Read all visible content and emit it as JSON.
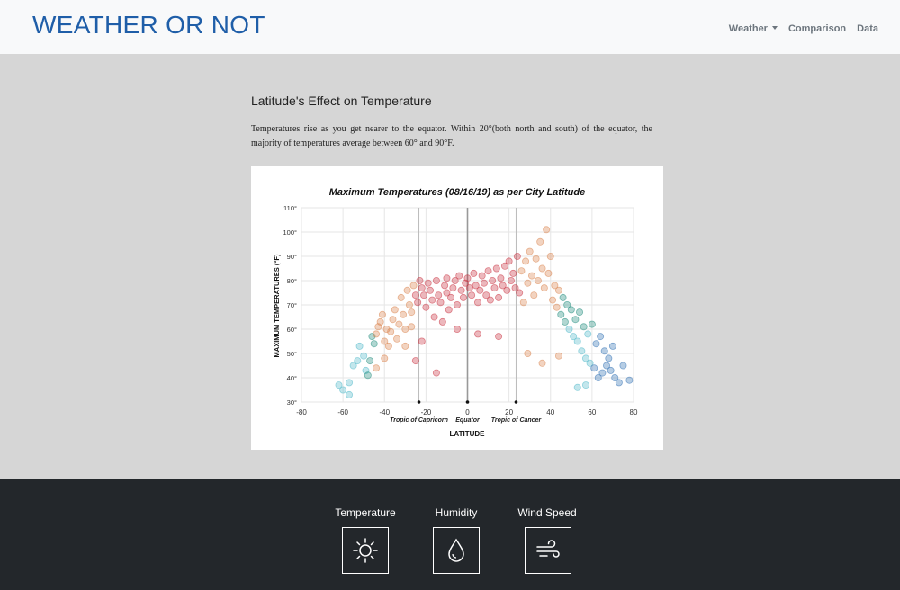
{
  "navbar": {
    "brand": "WEATHER OR NOT",
    "links": [
      "Weather",
      "Comparison",
      "Data"
    ]
  },
  "main": {
    "title": "Latitude's Effect on Temperature",
    "paragraph": "Temperatures rise as you get nearer to the equator. Within 20°(both north and south) of the equator, the majority of temperatures average between 60° and 90°F."
  },
  "footer": {
    "items": [
      {
        "label": "Temperature",
        "icon": "sun-icon"
      },
      {
        "label": "Humidity",
        "icon": "drop-icon"
      },
      {
        "label": "Wind Speed",
        "icon": "wind-icon"
      }
    ]
  },
  "chart_data": {
    "type": "scatter",
    "title": "Maximum Temperatures (08/16/19) as per City Latitude",
    "xlabel": "LATITUDE",
    "ylabel": "MAXIMUM TEMPERATURES (°F)",
    "xlim": [
      -80,
      80
    ],
    "ylim": [
      30,
      110
    ],
    "xticks": [
      "-80",
      "-60",
      "-40",
      "-20",
      "0",
      "20",
      "40",
      "60",
      "80"
    ],
    "yticks": [
      "30°",
      "40°",
      "50°",
      "60°",
      "70°",
      "80°",
      "90°",
      "100°",
      "110°"
    ],
    "reference_lines": [
      {
        "x": -23.4,
        "label": "Tropic of Capricorn"
      },
      {
        "x": 0,
        "label": "Equator"
      },
      {
        "x": 23.4,
        "label": "Tropic of Cancer"
      }
    ],
    "grid": true,
    "colors": {
      "cold": "#2f6fb3",
      "cool": "#4fb8c8",
      "teal": "#1e8a7a",
      "warm": "#d9824a",
      "hot": "#c9303e"
    },
    "points": [
      [
        -62,
        37
      ],
      [
        -60,
        35
      ],
      [
        -57,
        38
      ],
      [
        -57,
        33
      ],
      [
        -55,
        45
      ],
      [
        -53,
        47
      ],
      [
        -52,
        53
      ],
      [
        -50,
        49
      ],
      [
        -49,
        43
      ],
      [
        -48,
        41
      ],
      [
        -47,
        47
      ],
      [
        -46,
        57
      ],
      [
        -45,
        54
      ],
      [
        -44,
        58
      ],
      [
        -43,
        61
      ],
      [
        -42,
        63
      ],
      [
        -41,
        66
      ],
      [
        -40,
        55
      ],
      [
        -40,
        48
      ],
      [
        -39,
        60
      ],
      [
        -38,
        53
      ],
      [
        -37,
        59
      ],
      [
        -36,
        64
      ],
      [
        -35,
        68
      ],
      [
        -34,
        56
      ],
      [
        -33,
        62
      ],
      [
        -32,
        73
      ],
      [
        -31,
        66
      ],
      [
        -30,
        60
      ],
      [
        -30,
        53
      ],
      [
        -29,
        76
      ],
      [
        -28,
        70
      ],
      [
        -27,
        67
      ],
      [
        -27,
        61
      ],
      [
        -26,
        78
      ],
      [
        -25,
        74
      ],
      [
        -24,
        71
      ],
      [
        -23,
        80
      ],
      [
        -22,
        77
      ],
      [
        -22,
        55
      ],
      [
        -21,
        74
      ],
      [
        -20,
        69
      ],
      [
        -19,
        79
      ],
      [
        -18,
        76
      ],
      [
        -17,
        72
      ],
      [
        -16,
        65
      ],
      [
        -15,
        80
      ],
      [
        -14,
        74
      ],
      [
        -13,
        71
      ],
      [
        -12,
        63
      ],
      [
        -11,
        78
      ],
      [
        -10,
        81
      ],
      [
        -10,
        75
      ],
      [
        -9,
        68
      ],
      [
        -8,
        73
      ],
      [
        -7,
        77
      ],
      [
        -6,
        80
      ],
      [
        -5,
        70
      ],
      [
        -4,
        82
      ],
      [
        -3,
        76
      ],
      [
        -2,
        73
      ],
      [
        -1,
        79
      ],
      [
        0,
        81
      ],
      [
        1,
        77
      ],
      [
        2,
        74
      ],
      [
        3,
        83
      ],
      [
        4,
        78
      ],
      [
        5,
        71
      ],
      [
        6,
        76
      ],
      [
        7,
        82
      ],
      [
        8,
        79
      ],
      [
        9,
        74
      ],
      [
        10,
        84
      ],
      [
        11,
        72
      ],
      [
        12,
        80
      ],
      [
        13,
        77
      ],
      [
        14,
        85
      ],
      [
        15,
        73
      ],
      [
        16,
        81
      ],
      [
        17,
        78
      ],
      [
        18,
        86
      ],
      [
        19,
        76
      ],
      [
        20,
        88
      ],
      [
        21,
        80
      ],
      [
        22,
        83
      ],
      [
        23,
        77
      ],
      [
        24,
        90
      ],
      [
        25,
        75
      ],
      [
        26,
        84
      ],
      [
        27,
        71
      ],
      [
        28,
        88
      ],
      [
        29,
        79
      ],
      [
        30,
        92
      ],
      [
        31,
        82
      ],
      [
        32,
        74
      ],
      [
        33,
        89
      ],
      [
        34,
        80
      ],
      [
        35,
        96
      ],
      [
        36,
        85
      ],
      [
        37,
        77
      ],
      [
        38,
        101
      ],
      [
        39,
        83
      ],
      [
        40,
        90
      ],
      [
        41,
        72
      ],
      [
        42,
        78
      ],
      [
        43,
        69
      ],
      [
        44,
        76
      ],
      [
        45,
        66
      ],
      [
        46,
        73
      ],
      [
        47,
        63
      ],
      [
        48,
        70
      ],
      [
        49,
        60
      ],
      [
        50,
        68
      ],
      [
        51,
        57
      ],
      [
        52,
        64
      ],
      [
        53,
        55
      ],
      [
        54,
        67
      ],
      [
        55,
        51
      ],
      [
        56,
        61
      ],
      [
        57,
        48
      ],
      [
        58,
        58
      ],
      [
        59,
        46
      ],
      [
        60,
        62
      ],
      [
        61,
        44
      ],
      [
        62,
        54
      ],
      [
        63,
        40
      ],
      [
        64,
        57
      ],
      [
        65,
        42
      ],
      [
        66,
        51
      ],
      [
        67,
        45
      ],
      [
        68,
        48
      ],
      [
        69,
        43
      ],
      [
        70,
        53
      ],
      [
        71,
        40
      ],
      [
        73,
        38
      ],
      [
        75,
        45
      ],
      [
        78,
        39
      ],
      [
        -15,
        42
      ],
      [
        -5,
        60
      ],
      [
        5,
        58
      ],
      [
        15,
        57
      ],
      [
        29,
        50
      ],
      [
        -44,
        44
      ],
      [
        44,
        49
      ],
      [
        36,
        46
      ],
      [
        53,
        36
      ],
      [
        57,
        37
      ],
      [
        -25,
        47
      ]
    ]
  }
}
